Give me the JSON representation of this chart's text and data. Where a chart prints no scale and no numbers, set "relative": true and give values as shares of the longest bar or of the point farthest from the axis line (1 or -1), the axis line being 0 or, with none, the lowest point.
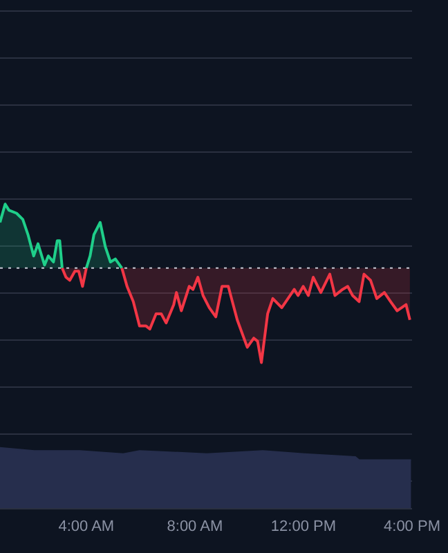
{
  "chart_data": {
    "type": "area",
    "relative": true,
    "x": [
      0.82,
      1.01,
      1.15,
      1.43,
      1.66,
      1.85,
      2.06,
      2.22,
      2.46,
      2.6,
      2.79,
      2.93,
      3.02,
      3.11,
      3.25,
      3.39,
      3.58,
      3.72,
      3.86,
      4.0,
      4.14,
      4.28,
      4.51,
      4.7,
      4.89,
      5.07,
      5.31,
      5.5,
      5.73,
      5.96,
      6.2,
      6.34,
      6.57,
      6.76,
      6.94,
      7.22,
      7.32,
      7.5,
      7.79,
      7.93,
      8.11,
      8.3,
      8.53,
      8.77,
      9.0,
      9.23,
      9.56,
      9.93,
      10.17,
      10.31,
      10.45,
      10.68,
      10.87,
      11.2,
      11.43,
      11.66,
      11.8,
      11.99,
      12.18,
      12.36,
      12.64,
      12.97,
      13.16,
      13.44,
      13.63,
      13.81,
      14.05,
      14.23,
      14.47,
      14.7,
      14.98,
      15.21,
      15.45,
      15.78,
      15.92
    ],
    "series": [
      {
        "type": "line",
        "color": "#1fcf8a",
        "values": [
          0.94,
          1.0,
          0.98,
          0.97,
          0.95,
          0.9,
          0.83,
          0.87,
          0.8,
          0.83,
          0.81,
          0.88,
          0.88,
          0.79,
          null,
          null,
          null,
          null,
          null,
          0.79,
          0.83,
          0.9,
          0.94,
          0.86,
          0.81,
          0.82,
          0.79,
          null,
          null,
          null,
          null,
          null,
          null,
          null,
          null,
          null,
          null,
          null,
          null,
          null,
          null,
          null,
          null,
          null,
          null,
          null,
          null,
          null,
          null,
          null,
          null,
          null,
          null,
          null,
          null,
          null,
          null,
          null,
          null,
          null,
          null,
          null,
          null,
          null,
          null,
          null,
          null,
          null,
          null,
          null,
          null,
          null,
          null,
          null,
          null
        ],
        "lower": [
          0.79,
          0.79,
          0.79,
          0.79,
          0.79,
          0.79,
          0.79,
          0.79,
          0.79,
          0.79,
          0.79,
          0.79,
          0.79,
          0.79,
          null,
          null,
          null,
          null,
          null,
          0.79,
          0.79,
          0.79,
          0.79,
          0.79,
          0.79,
          0.79,
          0.79,
          null,
          null,
          null,
          null,
          null,
          null,
          null,
          null,
          null,
          null,
          null,
          null,
          null,
          null,
          null,
          null,
          null,
          null,
          null,
          null,
          null,
          null,
          null,
          null,
          null,
          null,
          null,
          null,
          null,
          null,
          null,
          null,
          null,
          null,
          null,
          null,
          null,
          null,
          null,
          null,
          null,
          null,
          null,
          null,
          null,
          null,
          null,
          null
        ],
        "upper": [
          0.94,
          1.0,
          0.98,
          0.97,
          0.95,
          0.9,
          0.83,
          0.87,
          0.8,
          0.83,
          0.81,
          0.88,
          0.88,
          0.79,
          null,
          null,
          null,
          null,
          null,
          0.79,
          0.83,
          0.9,
          0.94,
          0.86,
          0.81,
          0.82,
          0.79,
          null,
          null,
          null,
          null,
          null,
          null,
          null,
          null,
          null,
          null,
          null,
          null,
          null,
          null,
          null,
          null,
          null,
          null,
          null,
          null,
          null,
          null,
          null,
          null,
          null,
          null,
          null,
          null,
          null,
          null,
          null,
          null,
          null,
          null,
          null,
          null,
          null,
          null,
          null,
          null,
          null,
          null,
          null,
          null,
          null,
          null,
          null,
          null
        ]
      },
      {
        "type": "line",
        "color": "#f23645",
        "values": [
          null,
          null,
          null,
          null,
          null,
          null,
          null,
          null,
          null,
          null,
          null,
          null,
          null,
          0.79,
          0.76,
          0.75,
          0.78,
          0.78,
          0.73,
          0.79,
          null,
          null,
          null,
          null,
          null,
          null,
          0.79,
          0.73,
          0.68,
          0.6,
          0.6,
          0.59,
          0.64,
          0.64,
          0.61,
          0.67,
          0.71,
          0.65,
          0.73,
          0.72,
          0.76,
          0.7,
          0.66,
          0.63,
          0.73,
          0.73,
          0.62,
          0.53,
          0.56,
          0.55,
          0.48,
          0.64,
          0.69,
          0.66,
          0.69,
          0.72,
          0.7,
          0.73,
          0.7,
          0.76,
          0.71,
          0.77,
          0.7,
          0.72,
          0.73,
          0.7,
          0.68,
          0.77,
          0.75,
          0.69,
          0.71,
          0.68,
          0.65,
          0.67,
          0.62
        ],
        "lower": [
          null,
          null,
          null,
          null,
          null,
          null,
          null,
          null,
          null,
          null,
          null,
          null,
          null,
          0.79,
          0.76,
          0.75,
          0.78,
          0.78,
          0.73,
          0.79,
          null,
          null,
          null,
          null,
          null,
          null,
          0.79,
          0.73,
          0.68,
          0.6,
          0.6,
          0.59,
          0.64,
          0.64,
          0.61,
          0.67,
          0.71,
          0.65,
          0.73,
          0.72,
          0.76,
          0.7,
          0.66,
          0.63,
          0.73,
          0.73,
          0.62,
          0.53,
          0.56,
          0.55,
          0.48,
          0.64,
          0.69,
          0.66,
          0.69,
          0.72,
          0.7,
          0.73,
          0.7,
          0.76,
          0.71,
          0.77,
          0.7,
          0.72,
          0.73,
          0.7,
          0.68,
          0.77,
          0.75,
          0.69,
          0.71,
          0.68,
          0.65,
          0.67,
          0.62
        ],
        "upper": [
          null,
          null,
          null,
          null,
          null,
          null,
          null,
          null,
          null,
          null,
          null,
          null,
          null,
          0.79,
          0.79,
          0.79,
          0.79,
          0.79,
          0.79,
          0.79,
          null,
          null,
          null,
          null,
          null,
          null,
          0.79,
          0.79,
          0.79,
          0.79,
          0.79,
          0.79,
          0.79,
          0.79,
          0.79,
          0.79,
          0.79,
          0.79,
          0.79,
          0.79,
          0.79,
          0.79,
          0.79,
          0.79,
          0.79,
          0.79,
          0.79,
          0.79,
          0.79,
          0.79,
          0.79,
          0.79,
          0.79,
          0.79,
          0.79,
          0.79,
          0.79,
          0.79,
          0.79,
          0.79,
          0.79,
          0.79,
          0.79,
          0.79,
          0.79,
          0.79,
          0.79,
          0.79,
          0.79,
          0.79,
          0.79,
          0.79,
          0.79,
          0.79,
          0.79
        ]
      },
      {
        "color": "#262e4d",
        "x": [
          0.82,
          2.08,
          3.76,
          5.36,
          5.96,
          8.44,
          10.5,
          12.04,
          13.91,
          14.05,
          14.98,
          15.96
        ],
        "values": [
          0.2,
          0.19,
          0.19,
          0.18,
          0.19,
          0.18,
          0.19,
          0.18,
          0.17,
          0.16,
          0.16,
          0.16
        ]
      }
    ],
    "xlim": [
      0.82,
      16
    ],
    "xticks": [
      {
        "value": 4,
        "label": "4:00 AM"
      },
      {
        "value": 8,
        "label": "8:00 AM"
      },
      {
        "value": 12,
        "label": "12:00 PM"
      },
      {
        "value": 16,
        "label": "4:00 PM"
      }
    ],
    "ref_lines": [
      {
        "axis": "y",
        "value": 0.79,
        "color": "#c8ccd6",
        "line_style": "dotted"
      }
    ],
    "grid": "y",
    "legend": false
  }
}
